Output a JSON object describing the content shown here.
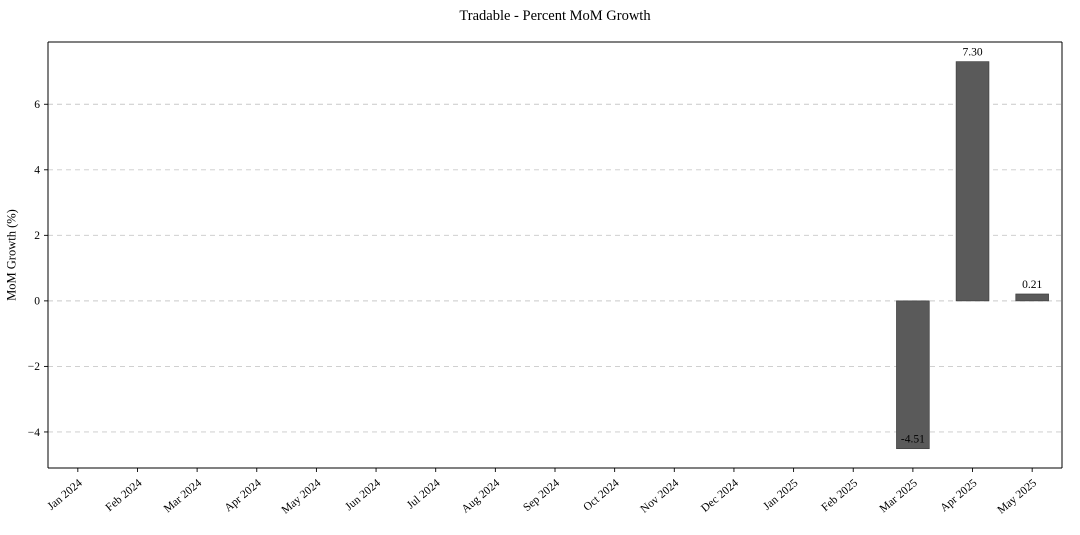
{
  "chart_data": {
    "type": "bar",
    "title": "Tradable - Percent MoM Growth",
    "ylabel": "MoM Growth (%)",
    "xlabel": "",
    "categories": [
      "Jan 2024",
      "Feb 2024",
      "Mar 2024",
      "Apr 2024",
      "May 2024",
      "Jun 2024",
      "Jul 2024",
      "Aug 2024",
      "Sep 2024",
      "Oct 2024",
      "Nov 2024",
      "Dec 2024",
      "Jan 2025",
      "Feb 2025",
      "Mar 2025",
      "Apr 2025",
      "May 2025"
    ],
    "values": [
      0,
      0,
      0,
      0,
      0,
      0,
      0,
      0,
      0,
      0,
      0,
      0,
      0,
      0,
      -4.51,
      7.3,
      0.21
    ],
    "bar_labels": [
      "",
      "",
      "",
      "",
      "",
      "",
      "",
      "",
      "",
      "",
      "",
      "",
      "",
      "",
      "-4.51",
      "7.30",
      "0.21"
    ],
    "ylim": [
      -5.1,
      7.9
    ],
    "yticks": [
      -4,
      -2,
      0,
      2,
      4,
      6
    ],
    "ytick_labels": [
      "−4",
      "−2",
      "0",
      "2",
      "4",
      "6"
    ],
    "grid": {
      "horizontal": true,
      "style": "dashed",
      "color": "#c9c9c9"
    },
    "bar_color": "#5a5a5a",
    "bar_edge_color": "#3f3f3f",
    "axis_color": "#000000",
    "text_color": "#000000"
  }
}
